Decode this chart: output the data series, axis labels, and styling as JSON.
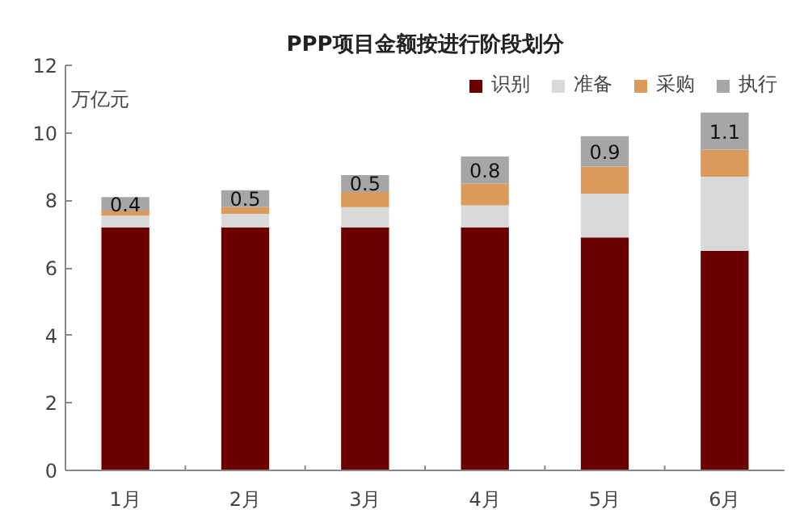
{
  "chart_data": {
    "type": "bar",
    "stacked": true,
    "title": "PPP项目金额按进行阶段划分",
    "annotations": [
      "万亿元"
    ],
    "categories": [
      "1月",
      "2月",
      "3月",
      "4月",
      "5月",
      "6月"
    ],
    "series": [
      {
        "name": "识别",
        "color": "#6b0000",
        "values": [
          7.2,
          7.2,
          7.2,
          7.2,
          6.9,
          6.5
        ]
      },
      {
        "name": "准备",
        "color": "#d9d9d9",
        "values": [
          0.35,
          0.4,
          0.6,
          0.65,
          1.3,
          2.2
        ]
      },
      {
        "name": "采购",
        "color": "#d99a5b",
        "values": [
          0.15,
          0.2,
          0.45,
          0.65,
          0.8,
          0.8
        ]
      },
      {
        "name": "执行",
        "color": "#a6a6a6",
        "values": [
          0.4,
          0.5,
          0.5,
          0.8,
          0.9,
          1.1
        ],
        "value_labels": [
          "0.4",
          "0.5",
          "0.5",
          "0.8",
          "0.9",
          "1.1"
        ]
      }
    ],
    "ylim": [
      0,
      12
    ],
    "yticks": [
      0,
      2,
      4,
      6,
      8,
      10,
      12
    ],
    "grid": false,
    "legend": "top"
  }
}
